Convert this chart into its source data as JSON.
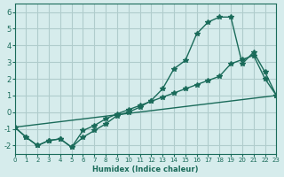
{
  "xlabel": "Humidex (Indice chaleur)",
  "ylabel": "",
  "bg_color": "#d6ecec",
  "grid_color": "#b0cccc",
  "line_color": "#1a6b5a",
  "xlim": [
    0,
    23
  ],
  "ylim": [
    -2.5,
    6.5
  ],
  "xticks": [
    0,
    1,
    2,
    3,
    4,
    5,
    6,
    7,
    8,
    9,
    10,
    11,
    12,
    13,
    14,
    15,
    16,
    17,
    18,
    19,
    20,
    21,
    22,
    23
  ],
  "yticks": [
    -2,
    -1,
    0,
    1,
    2,
    3,
    4,
    5,
    6
  ],
  "line1_x": [
    0,
    1,
    2,
    3,
    4,
    5,
    6,
    7,
    8,
    9,
    10,
    11,
    12,
    13,
    14,
    15,
    16,
    17,
    18,
    19,
    20,
    21,
    22,
    23
  ],
  "line1_y": [
    -0.9,
    -1.5,
    -2.0,
    -1.7,
    -1.6,
    -2.1,
    -1.5,
    -1.1,
    -0.7,
    -0.2,
    0.0,
    0.3,
    0.7,
    1.4,
    2.6,
    3.1,
    4.7,
    5.4,
    5.7,
    5.7,
    2.9,
    3.6,
    2.4,
    1.0
  ],
  "line2_x": [
    0,
    1,
    2,
    3,
    4,
    5,
    6,
    7,
    8,
    9,
    10,
    11,
    12,
    13,
    14,
    15,
    16,
    17,
    18,
    19,
    20,
    21,
    22,
    23
  ],
  "line2_y": [
    -0.9,
    -1.5,
    -2.0,
    -1.7,
    -1.6,
    -2.1,
    -1.1,
    -0.8,
    -0.4,
    -0.1,
    0.15,
    0.4,
    0.65,
    0.9,
    1.15,
    1.4,
    1.65,
    1.9,
    2.15,
    2.9,
    3.15,
    3.4,
    2.0,
    1.0
  ],
  "line3_x": [
    0,
    23
  ],
  "line3_y": [
    -0.9,
    1.0
  ]
}
